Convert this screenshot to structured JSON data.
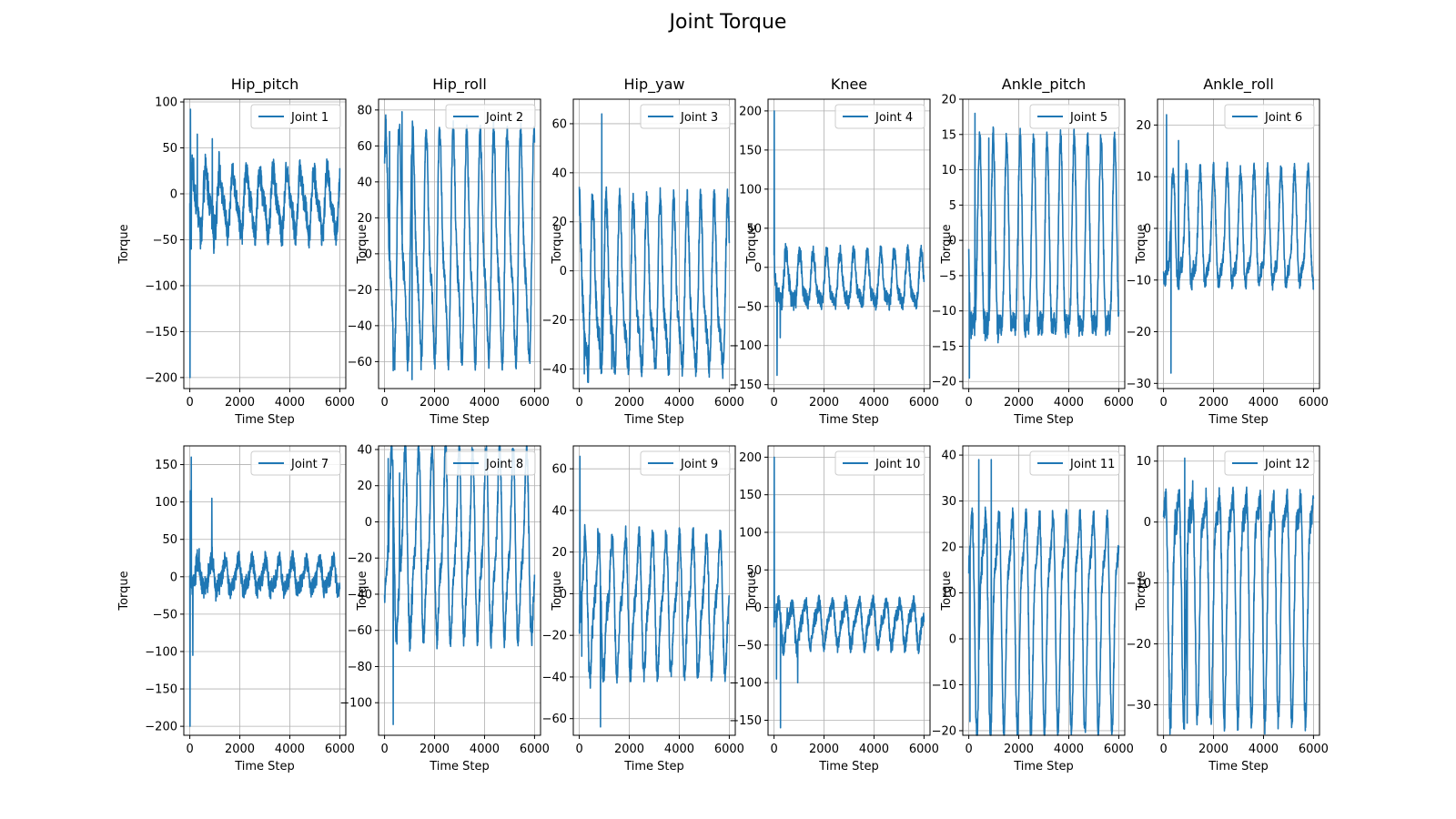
{
  "figure": {
    "title": "Joint Torque"
  },
  "chart_data": [
    {
      "type": "line",
      "title": "Hip_pitch",
      "xlabel": "Time Step",
      "ylabel": "Torque",
      "xlim": [
        -240,
        6240
      ],
      "ylim": [
        -212,
        103
      ],
      "xticks": [
        0,
        2000,
        4000,
        6000
      ],
      "yticks": [
        -200,
        -150,
        -100,
        -50,
        0,
        50,
        100
      ],
      "grid": true,
      "legend": "upper right",
      "series": [
        {
          "name": "Joint 1",
          "color": "#1f77b4",
          "base": -10,
          "amp": 30,
          "noise": 14,
          "spikes": [
            [
              5,
              -200
            ],
            [
              25,
              92
            ],
            [
              60,
              -60
            ],
            [
              300,
              65
            ],
            [
              900,
              60
            ]
          ],
          "x_range": [
            0,
            6000
          ]
        }
      ]
    },
    {
      "type": "line",
      "title": "Hip_roll",
      "xlabel": "Time Step",
      "ylabel": "Torque",
      "xlim": [
        -240,
        6240
      ],
      "ylim": [
        -75,
        86
      ],
      "xticks": [
        0,
        2000,
        4000,
        6000
      ],
      "yticks": [
        -60,
        -40,
        -20,
        0,
        20,
        40,
        60,
        80
      ],
      "grid": true,
      "legend": "upper right",
      "series": [
        {
          "name": "Joint 2",
          "color": "#1f77b4",
          "base": 0,
          "amp": 55,
          "noise": 6,
          "spikes": [
            [
              200,
              68
            ],
            [
              700,
              79
            ],
            [
              350,
              -65
            ],
            [
              1100,
              -70
            ]
          ],
          "x_range": [
            0,
            6000
          ]
        }
      ]
    },
    {
      "type": "line",
      "title": "Hip_yaw",
      "xlabel": "Time Step",
      "ylabel": "Torque",
      "xlim": [
        -240,
        6240
      ],
      "ylim": [
        -48,
        70
      ],
      "xticks": [
        0,
        2000,
        4000,
        6000
      ],
      "yticks": [
        -40,
        -20,
        0,
        20,
        40,
        60
      ],
      "grid": true,
      "legend": "upper right",
      "series": [
        {
          "name": "Joint 3",
          "color": "#1f77b4",
          "base": -10,
          "amp": 30,
          "noise": 5,
          "spikes": [
            [
              900,
              64
            ],
            [
              200,
              -42
            ],
            [
              1300,
              -40
            ]
          ],
          "x_range": [
            0,
            6000
          ]
        }
      ]
    },
    {
      "type": "line",
      "title": "Knee",
      "xlabel": "Time Step",
      "ylabel": "Torque",
      "xlim": [
        -240,
        6240
      ],
      "ylim": [
        -155,
        215
      ],
      "xticks": [
        0,
        2000,
        4000,
        6000
      ],
      "yticks": [
        -150,
        -100,
        -50,
        0,
        50,
        100,
        150,
        200
      ],
      "grid": true,
      "legend": "upper right",
      "series": [
        {
          "name": "Joint 4",
          "color": "#1f77b4",
          "base": -20,
          "amp": 30,
          "noise": 10,
          "spikes": [
            [
              5,
              200
            ],
            [
              120,
              -138
            ],
            [
              250,
              -90
            ]
          ],
          "x_range": [
            0,
            6000
          ]
        }
      ]
    },
    {
      "type": "line",
      "title": "Ankle_pitch",
      "xlabel": "Time Step",
      "ylabel": "Torque",
      "xlim": [
        -240,
        6240
      ],
      "ylim": [
        -21,
        20
      ],
      "xticks": [
        0,
        2000,
        4000,
        6000
      ],
      "yticks": [
        -20,
        -15,
        -10,
        -5,
        0,
        5,
        10,
        15,
        20
      ],
      "grid": true,
      "legend": "upper right",
      "series": [
        {
          "name": "Joint 5",
          "color": "#1f77b4",
          "base": -3,
          "amp": 13,
          "noise": 1.5,
          "spikes": [
            [
              250,
              18
            ],
            [
              30,
              -19.5
            ],
            [
              800,
              14.5
            ]
          ],
          "x_range": [
            0,
            6000
          ]
        }
      ]
    },
    {
      "type": "line",
      "title": "Ankle_roll",
      "xlabel": "Time Step",
      "ylabel": "Torque",
      "xlim": [
        -240,
        6240
      ],
      "ylim": [
        -31,
        25
      ],
      "xticks": [
        0,
        2000,
        4000,
        6000
      ],
      "yticks": [
        -30,
        -20,
        -10,
        0,
        10,
        20
      ],
      "grid": true,
      "legend": "upper right",
      "series": [
        {
          "name": "Joint 6",
          "color": "#1f77b4",
          "base": -2,
          "amp": 10,
          "noise": 1.5,
          "spikes": [
            [
              120,
              22
            ],
            [
              300,
              -28
            ],
            [
              600,
              17
            ]
          ],
          "x_range": [
            0,
            6000
          ]
        }
      ]
    },
    {
      "type": "line",
      "title": "",
      "xlabel": "Time Step",
      "ylabel": "Torque",
      "xlim": [
        -240,
        6240
      ],
      "ylim": [
        -212,
        175
      ],
      "xticks": [
        0,
        2000,
        4000,
        6000
      ],
      "yticks": [
        -200,
        -150,
        -100,
        -50,
        0,
        50,
        100,
        150
      ],
      "grid": true,
      "legend": "upper right",
      "series": [
        {
          "name": "Joint 7",
          "color": "#1f77b4",
          "base": 0,
          "amp": 18,
          "noise": 12,
          "spikes": [
            [
              5,
              -200
            ],
            [
              60,
              160
            ],
            [
              120,
              -105
            ],
            [
              880,
              105
            ],
            [
              20,
              115
            ]
          ],
          "x_range": [
            0,
            6000
          ]
        }
      ]
    },
    {
      "type": "line",
      "title": "",
      "xlabel": "Time Step",
      "ylabel": "Torque",
      "xlim": [
        -240,
        6240
      ],
      "ylim": [
        -118,
        42
      ],
      "xticks": [
        0,
        2000,
        4000,
        6000
      ],
      "yticks": [
        -100,
        -80,
        -60,
        -40,
        -20,
        0,
        20,
        40
      ],
      "grid": true,
      "legend": "upper right",
      "series": [
        {
          "name": "Joint 8",
          "color": "#1f77b4",
          "base": -15,
          "amp": 45,
          "noise": 6,
          "spikes": [
            [
              150,
              35
            ],
            [
              350,
              -112
            ],
            [
              600,
              27
            ]
          ],
          "x_range": [
            0,
            6000
          ]
        }
      ]
    },
    {
      "type": "line",
      "title": "",
      "xlabel": "Time Step",
      "ylabel": "Torque",
      "xlim": [
        -240,
        6240
      ],
      "ylim": [
        -68,
        71
      ],
      "xticks": [
        0,
        2000,
        4000,
        6000
      ],
      "yticks": [
        -60,
        -40,
        -20,
        0,
        20,
        40,
        60
      ],
      "grid": true,
      "legend": "upper right",
      "series": [
        {
          "name": "Joint 9",
          "color": "#1f77b4",
          "base": -5,
          "amp": 28,
          "noise": 5,
          "spikes": [
            [
              30,
              66
            ],
            [
              850,
              -64
            ],
            [
              100,
              -30
            ]
          ],
          "x_range": [
            0,
            6000
          ]
        }
      ]
    },
    {
      "type": "line",
      "title": "",
      "xlabel": "Time Step",
      "ylabel": "Torque",
      "xlim": [
        -240,
        6240
      ],
      "ylim": [
        -170,
        215
      ],
      "xticks": [
        0,
        2000,
        4000,
        6000
      ],
      "yticks": [
        -150,
        -100,
        -50,
        0,
        50,
        100,
        150,
        200
      ],
      "grid": true,
      "legend": "upper right",
      "series": [
        {
          "name": "Joint 10",
          "color": "#1f77b4",
          "base": -20,
          "amp": 25,
          "noise": 10,
          "spikes": [
            [
              5,
              200
            ],
            [
              260,
              -160
            ],
            [
              100,
              -95
            ],
            [
              950,
              -100
            ]
          ],
          "x_range": [
            0,
            6000
          ]
        }
      ]
    },
    {
      "type": "line",
      "title": "",
      "xlabel": "Time Step",
      "ylabel": "Torque",
      "xlim": [
        -240,
        6240
      ],
      "ylim": [
        -21,
        42
      ],
      "xticks": [
        0,
        2000,
        4000,
        6000
      ],
      "yticks": [
        -20,
        -10,
        0,
        10,
        20,
        30,
        40
      ],
      "grid": true,
      "legend": "upper right",
      "series": [
        {
          "name": "Joint 11",
          "color": "#1f77b4",
          "base": 7,
          "amp": 21,
          "noise": 2,
          "spikes": [
            [
              900,
              39
            ],
            [
              50,
              -18
            ],
            [
              400,
              39
            ]
          ],
          "x_range": [
            0,
            6000
          ]
        }
      ]
    },
    {
      "type": "line",
      "title": "",
      "xlabel": "Time Step",
      "ylabel": "Torque",
      "xlim": [
        -240,
        6240
      ],
      "ylim": [
        -35,
        12.5
      ],
      "xticks": [
        0,
        2000,
        4000,
        6000
      ],
      "yticks": [
        -30,
        -20,
        -10,
        0,
        10
      ],
      "grid": true,
      "legend": "upper right",
      "series": [
        {
          "name": "Joint 12",
          "color": "#1f77b4",
          "base": -10,
          "amp": 17,
          "noise": 2,
          "spikes": [
            [
              850,
              10.5
            ],
            [
              950,
              -33
            ]
          ],
          "x_range": [
            0,
            6000
          ]
        }
      ]
    }
  ]
}
